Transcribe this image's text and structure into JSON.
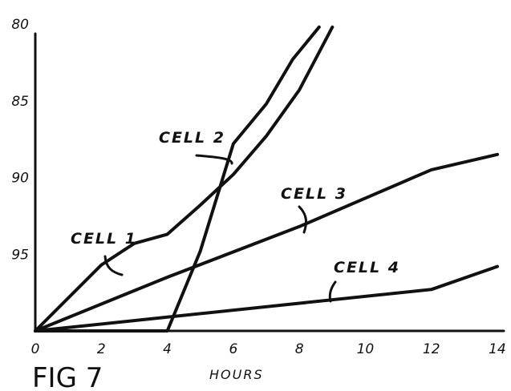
{
  "figure_label": "FIG 7",
  "chart_data": {
    "type": "line",
    "xlabel": "HOURS",
    "ylabel": "",
    "x_ticks": [
      "0",
      "2",
      "4",
      "6",
      "8",
      "10",
      "12",
      "14"
    ],
    "y_ticks": [
      "80",
      "85",
      "90",
      "95"
    ],
    "xlim": [
      0,
      14
    ],
    "ylim": [
      100,
      80
    ],
    "grid": false,
    "series": [
      {
        "name": "CELL 1",
        "x": [
          0,
          2,
          3,
          4,
          5,
          6,
          7,
          8,
          9
        ],
        "y": [
          100,
          95.7,
          94.3,
          93.7,
          91.8,
          89.8,
          87.3,
          84.3,
          80.2
        ]
      },
      {
        "name": "CELL 2",
        "x": [
          0,
          2,
          4,
          5,
          6,
          7,
          7.8,
          8.6
        ],
        "y": [
          100,
          100,
          100,
          94.8,
          87.8,
          85.2,
          82.3,
          80.2
        ]
      },
      {
        "name": "CELL 3",
        "x": [
          0,
          4,
          8,
          12,
          14
        ],
        "y": [
          100,
          96.5,
          93.2,
          89.5,
          88.5
        ]
      },
      {
        "name": "CELL 4",
        "x": [
          0,
          4,
          8,
          12,
          14
        ],
        "y": [
          100,
          99.1,
          98.2,
          97.3,
          95.8
        ]
      }
    ]
  }
}
